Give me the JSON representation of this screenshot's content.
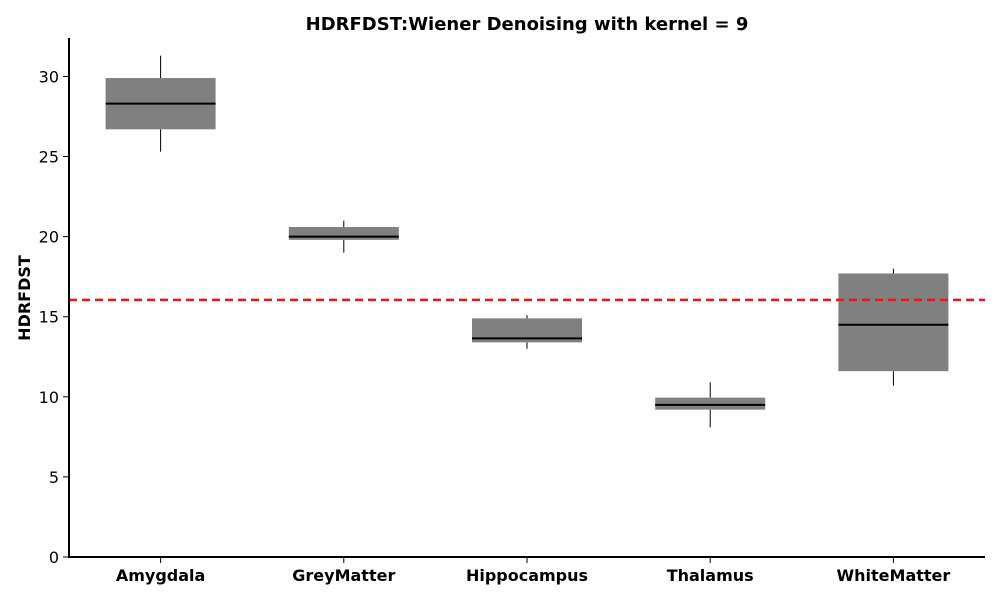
{
  "chart_data": {
    "type": "box",
    "title": "HDRFDST:Wiener Denoising with kernel = 9",
    "ylabel": "HDRFDST",
    "xlabel": "",
    "ylim": [
      0,
      32.4
    ],
    "yticks": [
      0,
      5,
      10,
      15,
      20,
      25,
      30
    ],
    "grid": false,
    "categories": [
      "Amygdala",
      "GreyMatter",
      "Hippocampus",
      "Thalamus",
      "WhiteMatter"
    ],
    "boxes": [
      {
        "category": "Amygdala",
        "whisker_low": 25.3,
        "q1": 26.7,
        "median": 28.3,
        "q3": 29.9,
        "whisker_high": 31.3
      },
      {
        "category": "GreyMatter",
        "whisker_low": 19.0,
        "q1": 19.8,
        "median": 20.0,
        "q3": 20.6,
        "whisker_high": 21.0
      },
      {
        "category": "Hippocampus",
        "whisker_low": 13.0,
        "q1": 13.4,
        "median": 13.65,
        "q3": 14.9,
        "whisker_high": 15.1
      },
      {
        "category": "Thalamus",
        "whisker_low": 8.1,
        "q1": 9.2,
        "median": 9.5,
        "q3": 9.95,
        "whisker_high": 10.9
      },
      {
        "category": "WhiteMatter",
        "whisker_low": 10.7,
        "q1": 11.6,
        "median": 14.5,
        "q3": 17.7,
        "whisker_high": 18.0
      }
    ],
    "reference_line": {
      "y": 16.05,
      "color": "#e31a1c",
      "style": "dashed"
    },
    "box_color": "#808080",
    "median_color": "#000000"
  }
}
